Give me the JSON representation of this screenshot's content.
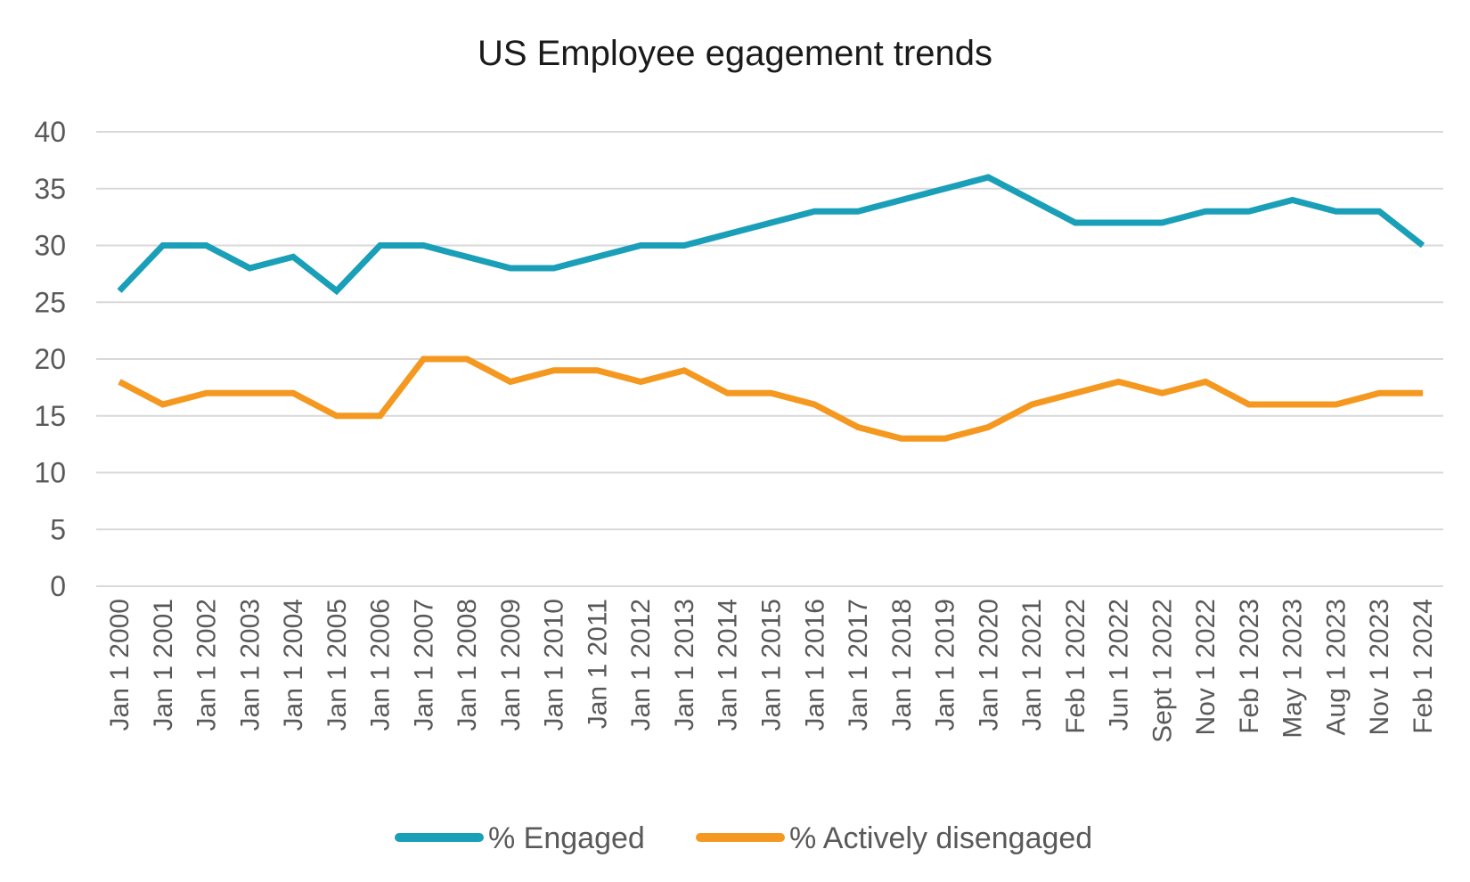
{
  "chart_data": {
    "type": "line",
    "title": "US Employee egagement trends",
    "xlabel": "",
    "ylabel": "",
    "ylim": [
      0,
      40
    ],
    "yticks": [
      "0",
      "5",
      "10",
      "15",
      "20",
      "25",
      "30",
      "35",
      "40"
    ],
    "grid": true,
    "legend_position": "bottom",
    "categories": [
      "Jan 1 2000",
      "Jan 1 2001",
      "Jan 1 2002",
      "Jan 1 2003",
      "Jan 1 2004",
      "Jan 1 2005",
      "Jan 1 2006",
      "Jan 1 2007",
      "Jan 1 2008",
      "Jan 1 2009",
      "Jan 1 2010",
      "Jan 1 2011",
      "Jan 1 2012",
      "Jan 1 2013",
      "Jan 1 2014",
      "Jan 1 2015",
      "Jan 1 2016",
      "Jan 1 2017",
      "Jan 1 2018",
      "Jan 1 2019",
      "Jan 1 2020",
      "Jan 1 2021",
      "Feb 1 2022",
      "Jun 1 2022",
      "Sept 1 2022",
      "Nov 1 2022",
      "Feb 1 2023",
      "May 1 2023",
      "Aug 1 2023",
      "Nov 1 2023",
      "Feb 1 2024"
    ],
    "series": [
      {
        "name": "% Engaged",
        "color": "#1a9fb8",
        "values": [
          26,
          30,
          30,
          28,
          29,
          26,
          30,
          30,
          29,
          28,
          28,
          29,
          30,
          30,
          31,
          32,
          33,
          33,
          34,
          35,
          36,
          34,
          32,
          32,
          32,
          33,
          33,
          34,
          33,
          33,
          30
        ]
      },
      {
        "name": "% Actively disengaged",
        "color": "#f5981f",
        "values": [
          18,
          16,
          17,
          17,
          17,
          15,
          15,
          20,
          20,
          18,
          19,
          19,
          18,
          19,
          17,
          17,
          16,
          14,
          13,
          13,
          14,
          16,
          17,
          18,
          17,
          18,
          16,
          16,
          16,
          17,
          17
        ]
      }
    ]
  }
}
